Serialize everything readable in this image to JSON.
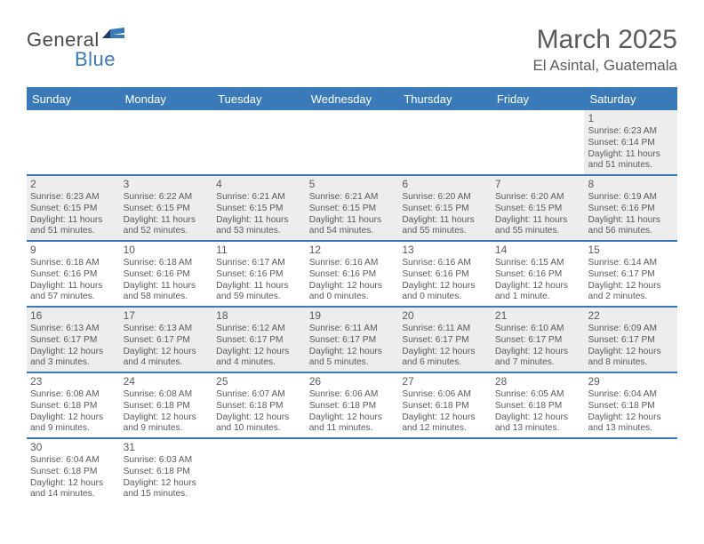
{
  "brand": {
    "part1": "General",
    "part2": "Blue"
  },
  "title": "March 2025",
  "subtitle": "El Asintal, Guatemala",
  "colors": {
    "header_bg": "#3a7ab8",
    "header_text": "#ffffff",
    "body_text": "#5a5a5a",
    "shade_bg": "#ededed",
    "rule": "#3a7ab8"
  },
  "day_headers": [
    "Sunday",
    "Monday",
    "Tuesday",
    "Wednesday",
    "Thursday",
    "Friday",
    "Saturday"
  ],
  "weeks": [
    [
      {
        "blank": true,
        "shade": false
      },
      {
        "blank": true,
        "shade": false
      },
      {
        "blank": true,
        "shade": false
      },
      {
        "blank": true,
        "shade": false
      },
      {
        "blank": true,
        "shade": false
      },
      {
        "blank": true,
        "shade": false
      },
      {
        "num": "1",
        "shade": true,
        "sunrise": "Sunrise: 6:23 AM",
        "sunset": "Sunset: 6:14 PM",
        "daylight": "Daylight: 11 hours and 51 minutes."
      }
    ],
    [
      {
        "num": "2",
        "shade": true,
        "sunrise": "Sunrise: 6:23 AM",
        "sunset": "Sunset: 6:15 PM",
        "daylight": "Daylight: 11 hours and 51 minutes."
      },
      {
        "num": "3",
        "shade": true,
        "sunrise": "Sunrise: 6:22 AM",
        "sunset": "Sunset: 6:15 PM",
        "daylight": "Daylight: 11 hours and 52 minutes."
      },
      {
        "num": "4",
        "shade": true,
        "sunrise": "Sunrise: 6:21 AM",
        "sunset": "Sunset: 6:15 PM",
        "daylight": "Daylight: 11 hours and 53 minutes."
      },
      {
        "num": "5",
        "shade": true,
        "sunrise": "Sunrise: 6:21 AM",
        "sunset": "Sunset: 6:15 PM",
        "daylight": "Daylight: 11 hours and 54 minutes."
      },
      {
        "num": "6",
        "shade": true,
        "sunrise": "Sunrise: 6:20 AM",
        "sunset": "Sunset: 6:15 PM",
        "daylight": "Daylight: 11 hours and 55 minutes."
      },
      {
        "num": "7",
        "shade": true,
        "sunrise": "Sunrise: 6:20 AM",
        "sunset": "Sunset: 6:15 PM",
        "daylight": "Daylight: 11 hours and 55 minutes."
      },
      {
        "num": "8",
        "shade": true,
        "sunrise": "Sunrise: 6:19 AM",
        "sunset": "Sunset: 6:16 PM",
        "daylight": "Daylight: 11 hours and 56 minutes."
      }
    ],
    [
      {
        "num": "9",
        "shade": false,
        "sunrise": "Sunrise: 6:18 AM",
        "sunset": "Sunset: 6:16 PM",
        "daylight": "Daylight: 11 hours and 57 minutes."
      },
      {
        "num": "10",
        "shade": false,
        "sunrise": "Sunrise: 6:18 AM",
        "sunset": "Sunset: 6:16 PM",
        "daylight": "Daylight: 11 hours and 58 minutes."
      },
      {
        "num": "11",
        "shade": false,
        "sunrise": "Sunrise: 6:17 AM",
        "sunset": "Sunset: 6:16 PM",
        "daylight": "Daylight: 11 hours and 59 minutes."
      },
      {
        "num": "12",
        "shade": false,
        "sunrise": "Sunrise: 6:16 AM",
        "sunset": "Sunset: 6:16 PM",
        "daylight": "Daylight: 12 hours and 0 minutes."
      },
      {
        "num": "13",
        "shade": false,
        "sunrise": "Sunrise: 6:16 AM",
        "sunset": "Sunset: 6:16 PM",
        "daylight": "Daylight: 12 hours and 0 minutes."
      },
      {
        "num": "14",
        "shade": false,
        "sunrise": "Sunrise: 6:15 AM",
        "sunset": "Sunset: 6:16 PM",
        "daylight": "Daylight: 12 hours and 1 minute."
      },
      {
        "num": "15",
        "shade": false,
        "sunrise": "Sunrise: 6:14 AM",
        "sunset": "Sunset: 6:17 PM",
        "daylight": "Daylight: 12 hours and 2 minutes."
      }
    ],
    [
      {
        "num": "16",
        "shade": true,
        "sunrise": "Sunrise: 6:13 AM",
        "sunset": "Sunset: 6:17 PM",
        "daylight": "Daylight: 12 hours and 3 minutes."
      },
      {
        "num": "17",
        "shade": true,
        "sunrise": "Sunrise: 6:13 AM",
        "sunset": "Sunset: 6:17 PM",
        "daylight": "Daylight: 12 hours and 4 minutes."
      },
      {
        "num": "18",
        "shade": true,
        "sunrise": "Sunrise: 6:12 AM",
        "sunset": "Sunset: 6:17 PM",
        "daylight": "Daylight: 12 hours and 4 minutes."
      },
      {
        "num": "19",
        "shade": true,
        "sunrise": "Sunrise: 6:11 AM",
        "sunset": "Sunset: 6:17 PM",
        "daylight": "Daylight: 12 hours and 5 minutes."
      },
      {
        "num": "20",
        "shade": true,
        "sunrise": "Sunrise: 6:11 AM",
        "sunset": "Sunset: 6:17 PM",
        "daylight": "Daylight: 12 hours and 6 minutes."
      },
      {
        "num": "21",
        "shade": true,
        "sunrise": "Sunrise: 6:10 AM",
        "sunset": "Sunset: 6:17 PM",
        "daylight": "Daylight: 12 hours and 7 minutes."
      },
      {
        "num": "22",
        "shade": true,
        "sunrise": "Sunrise: 6:09 AM",
        "sunset": "Sunset: 6:17 PM",
        "daylight": "Daylight: 12 hours and 8 minutes."
      }
    ],
    [
      {
        "num": "23",
        "shade": false,
        "sunrise": "Sunrise: 6:08 AM",
        "sunset": "Sunset: 6:18 PM",
        "daylight": "Daylight: 12 hours and 9 minutes."
      },
      {
        "num": "24",
        "shade": false,
        "sunrise": "Sunrise: 6:08 AM",
        "sunset": "Sunset: 6:18 PM",
        "daylight": "Daylight: 12 hours and 9 minutes."
      },
      {
        "num": "25",
        "shade": false,
        "sunrise": "Sunrise: 6:07 AM",
        "sunset": "Sunset: 6:18 PM",
        "daylight": "Daylight: 12 hours and 10 minutes."
      },
      {
        "num": "26",
        "shade": false,
        "sunrise": "Sunrise: 6:06 AM",
        "sunset": "Sunset: 6:18 PM",
        "daylight": "Daylight: 12 hours and 11 minutes."
      },
      {
        "num": "27",
        "shade": false,
        "sunrise": "Sunrise: 6:06 AM",
        "sunset": "Sunset: 6:18 PM",
        "daylight": "Daylight: 12 hours and 12 minutes."
      },
      {
        "num": "28",
        "shade": false,
        "sunrise": "Sunrise: 6:05 AM",
        "sunset": "Sunset: 6:18 PM",
        "daylight": "Daylight: 12 hours and 13 minutes."
      },
      {
        "num": "29",
        "shade": false,
        "sunrise": "Sunrise: 6:04 AM",
        "sunset": "Sunset: 6:18 PM",
        "daylight": "Daylight: 12 hours and 13 minutes."
      }
    ],
    [
      {
        "num": "30",
        "shade": false,
        "sunrise": "Sunrise: 6:04 AM",
        "sunset": "Sunset: 6:18 PM",
        "daylight": "Daylight: 12 hours and 14 minutes."
      },
      {
        "num": "31",
        "shade": false,
        "sunrise": "Sunrise: 6:03 AM",
        "sunset": "Sunset: 6:18 PM",
        "daylight": "Daylight: 12 hours and 15 minutes."
      },
      {
        "blank": true,
        "shade": false
      },
      {
        "blank": true,
        "shade": false
      },
      {
        "blank": true,
        "shade": false
      },
      {
        "blank": true,
        "shade": false
      },
      {
        "blank": true,
        "shade": false
      }
    ]
  ]
}
